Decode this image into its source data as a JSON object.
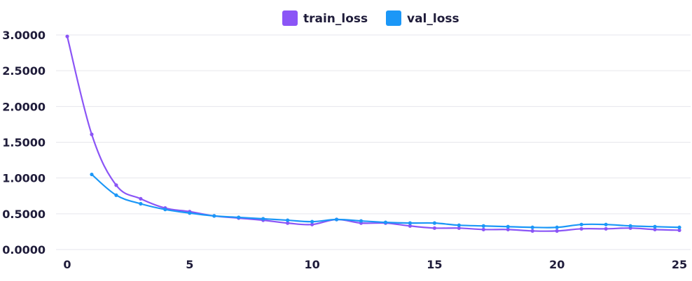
{
  "chart_data": {
    "type": "line",
    "legend_position": "top-center",
    "grid": true,
    "xlim": [
      0,
      25
    ],
    "ylim": [
      0,
      3.0
    ],
    "x_ticks": [
      "0",
      "5",
      "10",
      "15",
      "20",
      "25"
    ],
    "y_ticks": [
      "0.0000",
      "0.5000",
      "1.0000",
      "1.5000",
      "2.0000",
      "2.5000",
      "3.0000"
    ],
    "series": [
      {
        "name": "train_loss",
        "color": "#8b55f6",
        "x": [
          0,
          1,
          2,
          3,
          4,
          5,
          6,
          7,
          8,
          9,
          10,
          11,
          12,
          13,
          14,
          15,
          16,
          17,
          18,
          19,
          20,
          21,
          22,
          23,
          24,
          25
        ],
        "values": [
          2.98,
          1.61,
          0.9,
          0.71,
          0.58,
          0.53,
          0.47,
          0.44,
          0.41,
          0.37,
          0.35,
          0.42,
          0.37,
          0.37,
          0.33,
          0.3,
          0.3,
          0.28,
          0.28,
          0.26,
          0.26,
          0.29,
          0.29,
          0.3,
          0.28,
          0.27
        ]
      },
      {
        "name": "val_loss",
        "color": "#1b97f7",
        "x": [
          1,
          2,
          3,
          4,
          5,
          6,
          7,
          8,
          9,
          10,
          11,
          12,
          13,
          14,
          15,
          16,
          17,
          18,
          19,
          20,
          21,
          22,
          23,
          24,
          25
        ],
        "values": [
          1.05,
          0.76,
          0.64,
          0.56,
          0.51,
          0.47,
          0.45,
          0.43,
          0.41,
          0.39,
          0.42,
          0.4,
          0.38,
          0.37,
          0.37,
          0.34,
          0.33,
          0.32,
          0.31,
          0.31,
          0.35,
          0.35,
          0.33,
          0.32,
          0.31
        ]
      }
    ]
  }
}
